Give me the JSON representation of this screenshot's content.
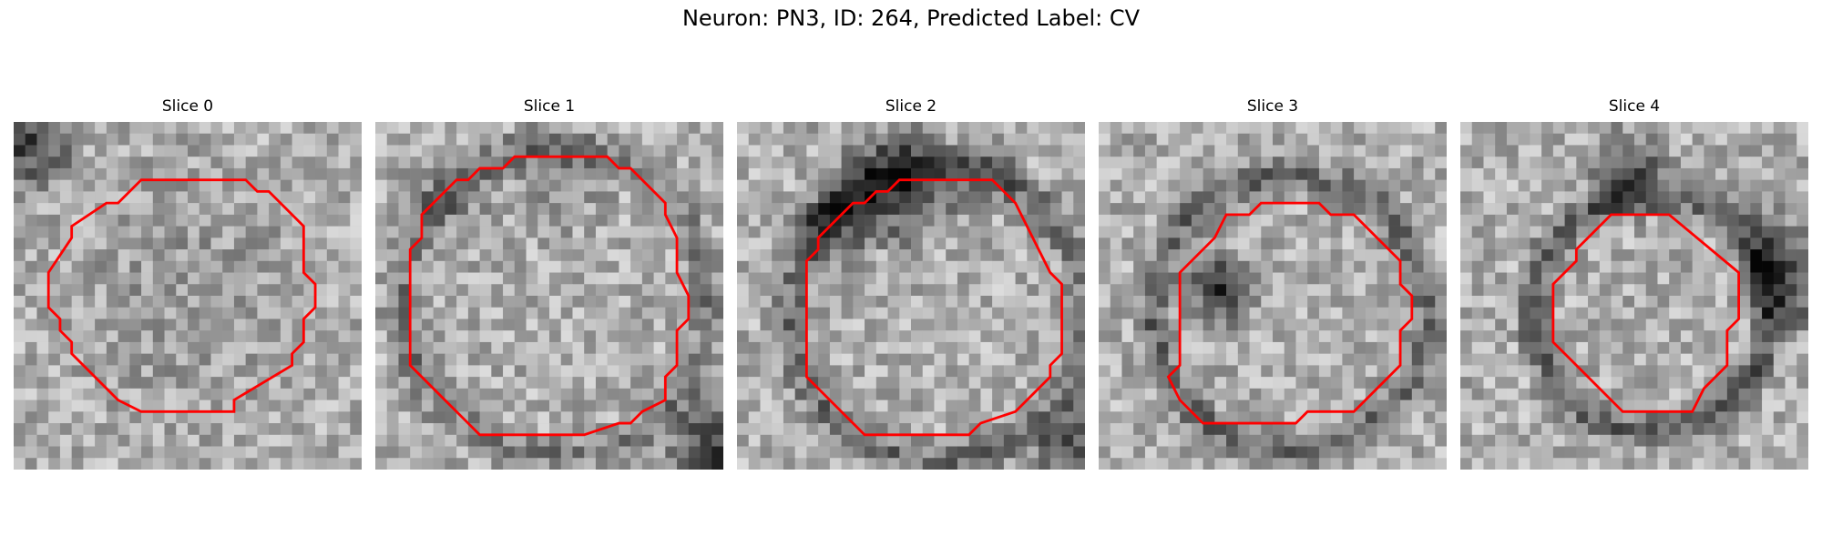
{
  "figure": {
    "title": "Neuron: PN3, ID: 264, Predicted Label: CV"
  },
  "panels": [
    {
      "title": "Slice 0",
      "contour_color": "#ff0000",
      "dark_blobs": [
        "top-left corner"
      ]
    },
    {
      "title": "Slice 1",
      "contour_color": "#ff0000",
      "dark_blobs": [
        "top rim",
        "bottom-right corner"
      ]
    },
    {
      "title": "Slice 2",
      "contour_color": "#ff0000",
      "dark_blobs": [
        "top center",
        "bottom-right corner"
      ]
    },
    {
      "title": "Slice 3",
      "contour_color": "#ff0000",
      "dark_blobs": [
        "left interior"
      ]
    },
    {
      "title": "Slice 4",
      "contour_color": "#ff0000",
      "dark_blobs": [
        "top rim",
        "right rim"
      ]
    }
  ]
}
